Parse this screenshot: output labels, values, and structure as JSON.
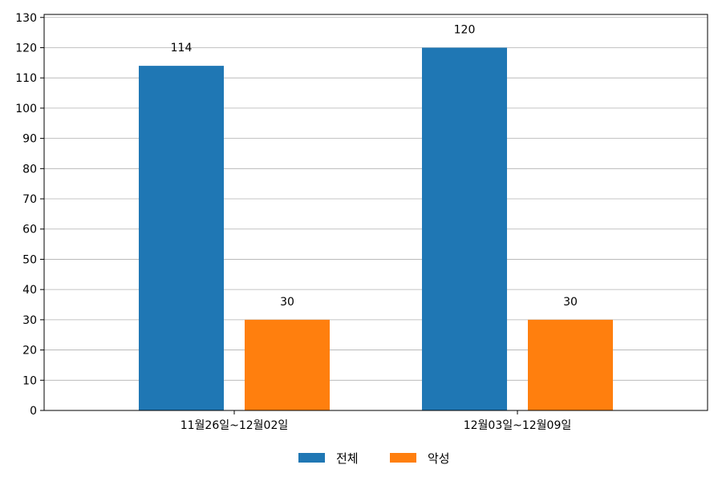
{
  "chart_data": {
    "type": "bar",
    "categories": [
      "11월26일~12월02일",
      "12월03일~12월09일"
    ],
    "series": [
      {
        "name": "전체",
        "values": [
          114,
          120
        ],
        "color": "#1f77b4"
      },
      {
        "name": "악성",
        "values": [
          30,
          30
        ],
        "color": "#ff7f0e"
      }
    ],
    "title": "",
    "xlabel": "",
    "ylabel": "",
    "ylim": [
      0,
      131
    ],
    "yticks": [
      0,
      10,
      20,
      30,
      40,
      50,
      60,
      70,
      80,
      90,
      100,
      110,
      120,
      130
    ],
    "grid": "horizontal",
    "legend_position": "bottom-center",
    "show_data_labels": true
  }
}
